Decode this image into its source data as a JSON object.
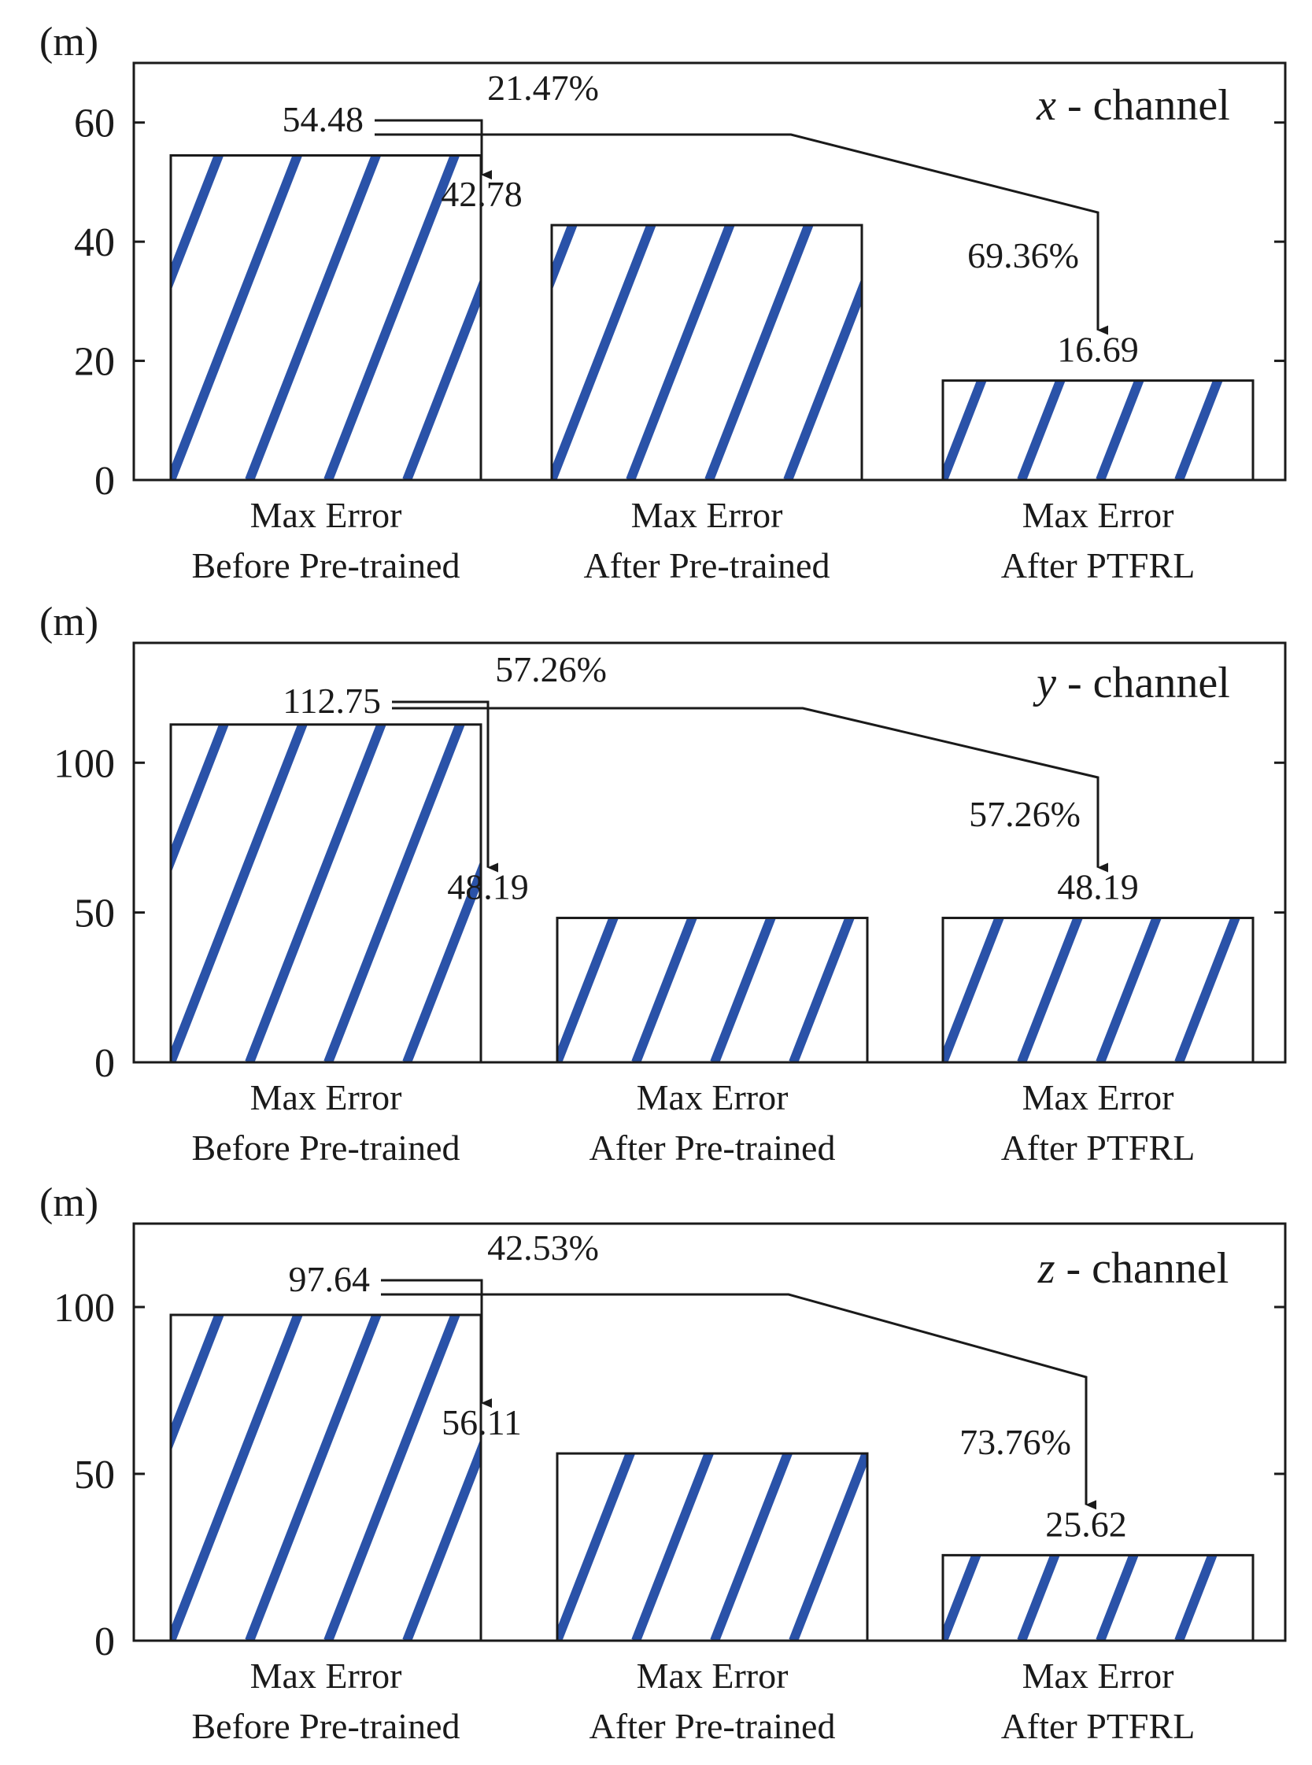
{
  "colors": {
    "hatch": "#2a52a8",
    "frame": "#1a1a1a",
    "background": "#ffffff"
  },
  "chart_data": [
    {
      "type": "bar",
      "channel_var": "x",
      "channel_suffix": " - channel",
      "unit": "(m)",
      "ylim": [
        0,
        70
      ],
      "yticks": [
        0,
        20,
        40,
        60
      ],
      "categories": [
        [
          "Max Error",
          "Before Pre-trained"
        ],
        [
          "Max Error",
          "After Pre-trained"
        ],
        [
          "Max Error",
          "After PTFRL"
        ]
      ],
      "values": [
        54.48,
        42.78,
        16.69
      ],
      "value_labels": [
        "54.48",
        "42.78",
        "16.69"
      ],
      "annotations": [
        {
          "text": "21.47%",
          "from": 0,
          "to": 1
        },
        {
          "text": "69.36%",
          "from": 0,
          "to": 2
        }
      ]
    },
    {
      "type": "bar",
      "channel_var": "y",
      "channel_suffix": " - channel",
      "unit": "(m)",
      "ylim": [
        0,
        140
      ],
      "yticks": [
        0,
        50,
        100
      ],
      "categories": [
        [
          "Max Error",
          "Before Pre-trained"
        ],
        [
          "Max Error",
          "After Pre-trained"
        ],
        [
          "Max Error",
          "After PTFRL"
        ]
      ],
      "values": [
        112.75,
        48.19,
        48.19
      ],
      "value_labels": [
        "112.75",
        "48.19",
        "48.19"
      ],
      "annotations": [
        {
          "text": "57.26%",
          "from": 0,
          "to": 1
        },
        {
          "text": "57.26%",
          "from": 0,
          "to": 2
        }
      ]
    },
    {
      "type": "bar",
      "channel_var": "z",
      "channel_suffix": " - channel",
      "unit": "(m)",
      "ylim": [
        0,
        125
      ],
      "yticks": [
        0,
        50,
        100
      ],
      "categories": [
        [
          "Max Error",
          "Before Pre-trained"
        ],
        [
          "Max Error",
          "After Pre-trained"
        ],
        [
          "Max Error",
          "After PTFRL"
        ]
      ],
      "values": [
        97.64,
        56.11,
        25.62
      ],
      "value_labels": [
        "97.64",
        "56.11",
        "25.62"
      ],
      "annotations": [
        {
          "text": "42.53%",
          "from": 0,
          "to": 1
        },
        {
          "text": "73.76%",
          "from": 0,
          "to": 2
        }
      ]
    }
  ]
}
